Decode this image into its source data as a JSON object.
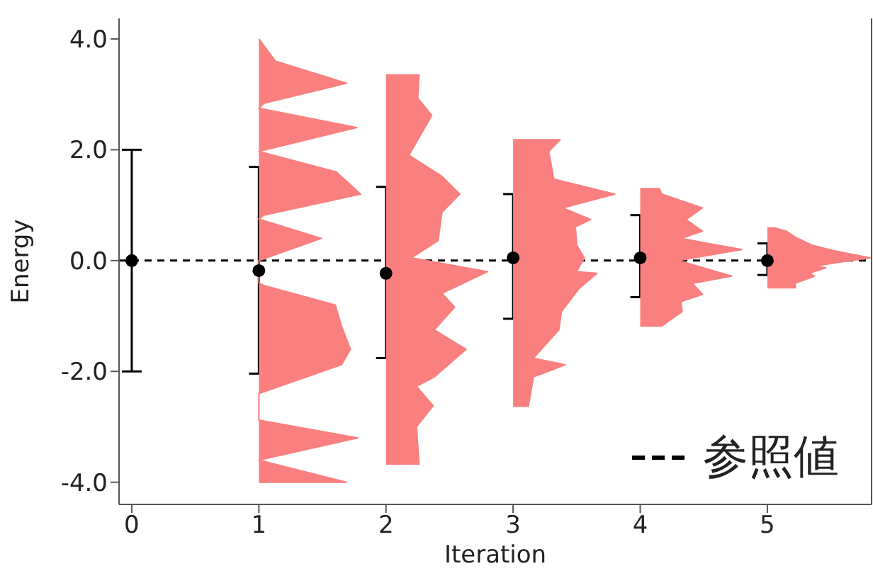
{
  "chart_data": {
    "type": "scatter",
    "xlabel": "Iteration",
    "ylabel": "Energy",
    "xlim": [
      -0.1,
      5.82
    ],
    "ylim": [
      -4.4,
      4.37
    ],
    "xticks": [
      0,
      1,
      2,
      3,
      4,
      5
    ],
    "yticks": [
      {
        "value": -4,
        "label": "-4.0"
      },
      {
        "value": -2,
        "label": "-2.0"
      },
      {
        "value": 0,
        "label": "0.0"
      },
      {
        "value": 2,
        "label": "2.0"
      },
      {
        "value": 4,
        "label": "4.0"
      }
    ],
    "marker": "circle",
    "legend": "bottom right",
    "ref_lines": [
      {
        "axis": "y",
        "value": 0,
        "label": "参照値",
        "color": "#000000",
        "line_style": "dashed"
      }
    ],
    "series": [
      {
        "color": "#000000",
        "x": [
          0,
          1,
          2,
          3,
          4,
          5
        ],
        "values": [
          0,
          -0.18,
          -0.23,
          0.05,
          0.05,
          0
        ],
        "errors": [
          [
            -2,
            2
          ],
          [
            -2.04,
            1.69
          ],
          [
            -1.76,
            1.33
          ],
          [
            -1.05,
            1.2
          ],
          [
            -0.66,
            0.82
          ],
          [
            -0.26,
            0.31
          ]
        ]
      },
      {
        "type": "area",
        "marker": "none",
        "color": "#fa7f7f",
        "x": [
          1,
          1.13,
          1.69,
          1.04,
          1,
          1.77,
          1,
          1.61,
          1.8,
          1.04,
          1,
          1.49,
          1,
          1,
          1.04,
          1.6,
          1.65,
          1.72,
          1.65,
          1,
          1,
          1.78,
          1,
          1.69,
          1
        ],
        "values": [
          4,
          3.6,
          3.2,
          2.84,
          2.75,
          2.4,
          1.97,
          1.6,
          1.2,
          0.82,
          0.75,
          0.4,
          0,
          -0.4,
          -0.45,
          -0.8,
          -1.18,
          -1.6,
          -1.88,
          -2.4,
          -2.88,
          -3.2,
          -3.6,
          -4,
          -4
        ]
      },
      {
        "type": "area",
        "marker": "none",
        "color": "#fa7f7f",
        "x": [
          2,
          2.26,
          2.25,
          2.36,
          2.18,
          2.44,
          2.58,
          2.44,
          2.41,
          2.2,
          2.8,
          2.44,
          2.54,
          2.38,
          2.63,
          2.38,
          2.24,
          2.37,
          2.24,
          2.26,
          2
        ],
        "values": [
          3.35,
          3.35,
          2.93,
          2.62,
          1.9,
          1.52,
          1.2,
          0.87,
          0.36,
          0.05,
          -0.2,
          -0.59,
          -0.84,
          -1.25,
          -1.6,
          -2.1,
          -2.27,
          -2.62,
          -3,
          -3.67,
          -3.67
        ]
      },
      {
        "type": "area",
        "marker": "none",
        "color": "#fa7f7f",
        "x": [
          3,
          3.37,
          3.28,
          3.32,
          3.8,
          3.39,
          3.61,
          3.49,
          3.5,
          3.56,
          3.5,
          3.66,
          3.52,
          3.38,
          3.36,
          3.16,
          3.41,
          3.16,
          3.12,
          3
        ],
        "values": [
          2.18,
          2.18,
          1.97,
          1.47,
          1.2,
          0.95,
          0.74,
          0.61,
          0.28,
          0.05,
          -0.2,
          -0.23,
          -0.5,
          -0.92,
          -1.25,
          -1.76,
          -1.88,
          -2.1,
          -2.63,
          -2.63
        ]
      },
      {
        "type": "area",
        "marker": "none",
        "color": "#fa7f7f",
        "x": [
          4,
          4.15,
          4.17,
          4.49,
          4.36,
          4.49,
          4.32,
          4.8,
          4.3,
          4.72,
          4.41,
          4.49,
          4.32,
          4.33,
          4.17,
          4
        ],
        "values": [
          1.3,
          1.3,
          1.2,
          0.95,
          0.74,
          0.53,
          0.4,
          0.2,
          0,
          -0.28,
          -0.41,
          -0.61,
          -0.74,
          -0.92,
          -1.18,
          -1.18
        ]
      },
      {
        "type": "area",
        "marker": "none",
        "color": "#fa7f7f",
        "x": [
          5,
          5.06,
          5.15,
          5.23,
          5.35,
          5.52,
          5.81,
          5.56,
          5.37,
          5.46,
          5.33,
          5.37,
          5.22,
          5.22,
          5
        ],
        "values": [
          0.59,
          0.59,
          0.53,
          0.41,
          0.28,
          0.18,
          0.05,
          -0.03,
          -0.1,
          -0.13,
          -0.23,
          -0.28,
          -0.41,
          -0.49,
          -0.49
        ]
      }
    ]
  }
}
